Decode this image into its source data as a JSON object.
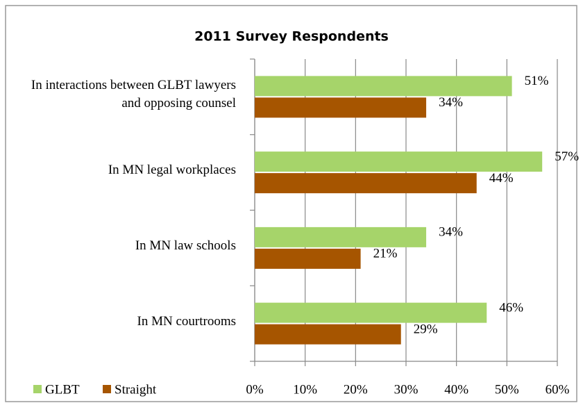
{
  "chart_data": {
    "type": "bar",
    "orientation": "horizontal",
    "title": "2011 Survey Respondents",
    "categories": [
      "In interactions between GLBT lawyers and opposing counsel",
      "In MN legal workplaces",
      "In MN law schools",
      "In MN courtrooms"
    ],
    "series": [
      {
        "name": "GLBT",
        "color": "#a6d46a",
        "values": [
          51,
          57,
          34,
          46
        ],
        "value_labels": [
          "51%",
          "57%",
          "34%",
          "46%"
        ]
      },
      {
        "name": "Straight",
        "color": "#a65500",
        "values": [
          34,
          44,
          21,
          29
        ],
        "value_labels": [
          "34%",
          "44%",
          "21%",
          "29%"
        ]
      }
    ],
    "xlim": [
      0,
      60
    ],
    "xticks": [
      {
        "value": 0,
        "label": "0%"
      },
      {
        "value": 10,
        "label": "10%"
      },
      {
        "value": 20,
        "label": "20%"
      },
      {
        "value": 30,
        "label": "30%"
      },
      {
        "value": 40,
        "label": "40%"
      },
      {
        "value": 50,
        "label": "50%"
      },
      {
        "value": 60,
        "label": "60%"
      }
    ],
    "grid": true,
    "legend": "bottom-left"
  }
}
